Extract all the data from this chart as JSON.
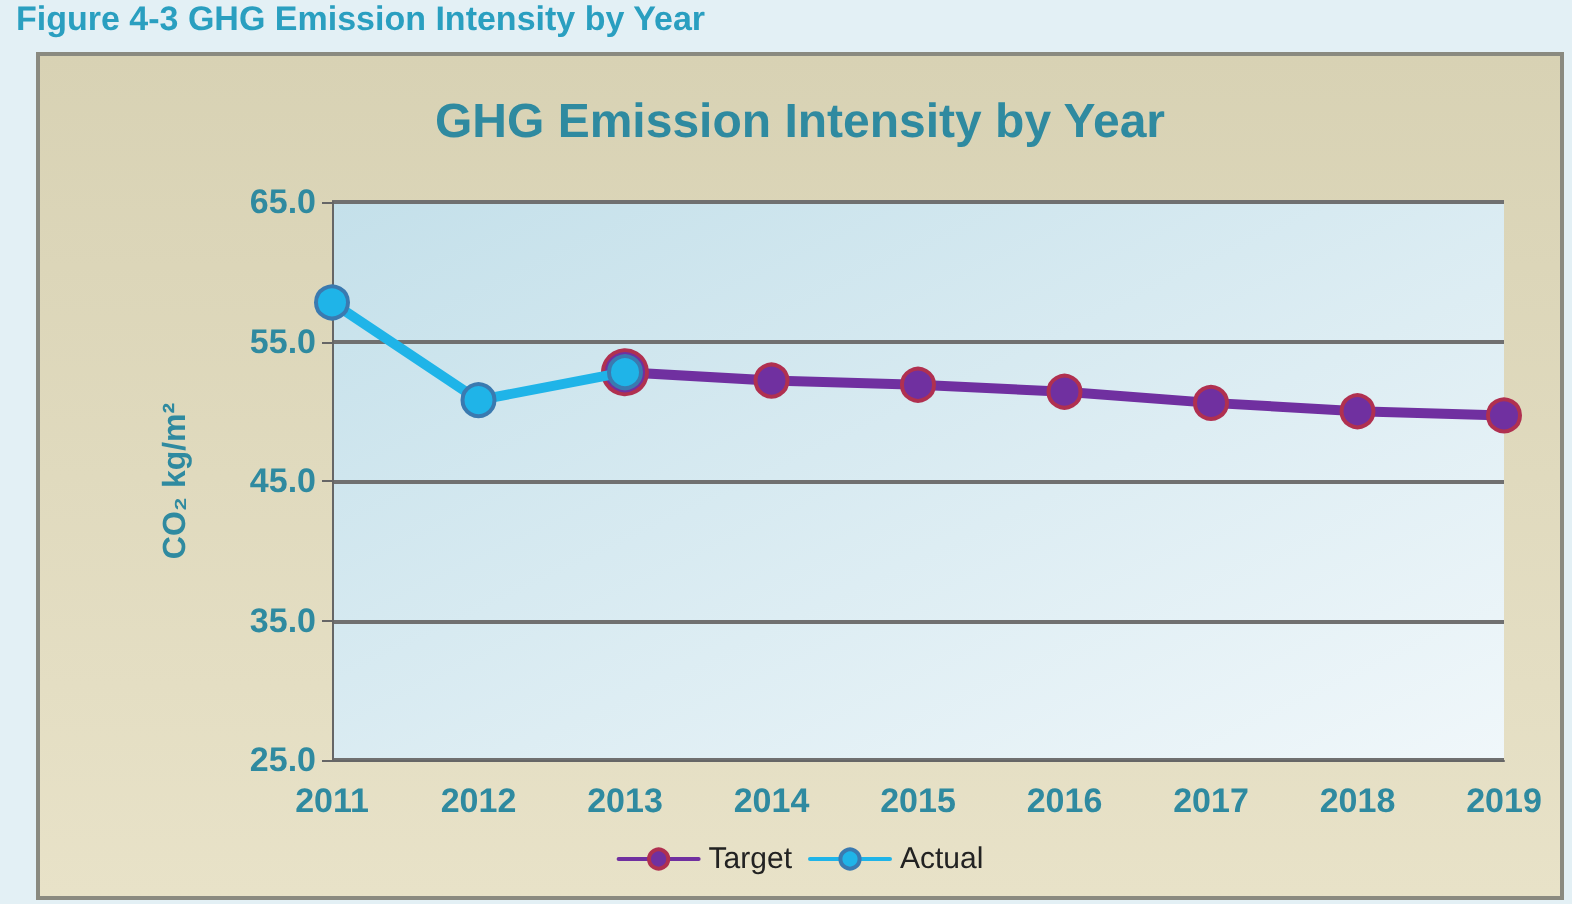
{
  "chart_data": {
    "type": "line",
    "title": "GHG Emission Intensity by Year",
    "annotations": [
      "Figure 4-3 GHG Emission Intensity by Year"
    ],
    "ylabel": "CO₂ kg/m²",
    "categories": [
      "2011",
      "2012",
      "2013",
      "2014",
      "2015",
      "2016",
      "2017",
      "2018",
      "2019"
    ],
    "series": [
      {
        "name": "Target",
        "color": "#7030a0",
        "values": [
          null,
          null,
          52.8,
          52.2,
          51.9,
          51.4,
          50.6,
          50.0,
          49.7
        ]
      },
      {
        "name": "Actual",
        "color": "#1fb4e8",
        "values": [
          57.8,
          50.8,
          52.8,
          null,
          null,
          null,
          null,
          null,
          null
        ]
      }
    ],
    "ylim": [
      25,
      65
    ],
    "yticks": [
      {
        "value": 25,
        "label": "25.0"
      },
      {
        "value": 35,
        "label": "35.0"
      },
      {
        "value": 45,
        "label": "45.0"
      },
      {
        "value": 55,
        "label": "55.0"
      },
      {
        "value": 65,
        "label": "65.0"
      }
    ],
    "grid": "y",
    "legend": "bottom",
    "marker": "circle",
    "line_style": "solid"
  }
}
